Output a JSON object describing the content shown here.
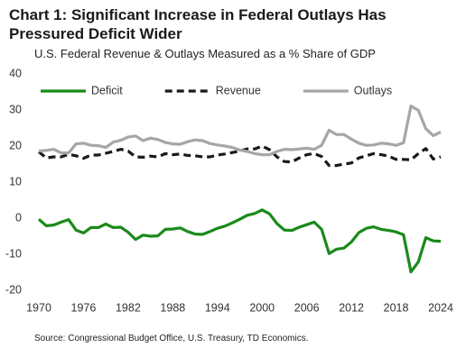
{
  "chart_data": {
    "type": "line",
    "title": "Chart 1: Significant Increase in Federal Outlays Has Pressured Deficit Wider",
    "subtitle": "U.S. Federal Revenue & Outlays Measured as a % Share of GDP",
    "source": "Source: Congressional Budget Office, U.S. Treasury, TD Economics.",
    "x": [
      1970,
      1971,
      1972,
      1973,
      1974,
      1975,
      1976,
      1977,
      1978,
      1979,
      1980,
      1981,
      1982,
      1983,
      1984,
      1985,
      1986,
      1987,
      1988,
      1989,
      1990,
      1991,
      1992,
      1993,
      1994,
      1995,
      1996,
      1997,
      1998,
      1999,
      2000,
      2001,
      2002,
      2003,
      2004,
      2005,
      2006,
      2007,
      2008,
      2009,
      2010,
      2011,
      2012,
      2013,
      2014,
      2015,
      2016,
      2017,
      2018,
      2019,
      2020,
      2021,
      2022,
      2023,
      2024
    ],
    "series": [
      {
        "name": "Deficit",
        "color": "#1a8a1a",
        "dash": false,
        "values": [
          -0.3,
          -2.1,
          -1.9,
          -1.1,
          -0.4,
          -3.3,
          -4.1,
          -2.6,
          -2.6,
          -1.6,
          -2.6,
          -2.5,
          -3.9,
          -5.9,
          -4.7,
          -5.0,
          -4.9,
          -3.1,
          -3.0,
          -2.7,
          -3.7,
          -4.4,
          -4.5,
          -3.7,
          -2.8,
          -2.2,
          -1.3,
          -0.3,
          0.8,
          1.3,
          2.3,
          1.2,
          -1.5,
          -3.3,
          -3.4,
          -2.5,
          -1.8,
          -1.1,
          -3.1,
          -9.8,
          -8.6,
          -8.3,
          -6.6,
          -4.0,
          -2.8,
          -2.4,
          -3.1,
          -3.4,
          -3.8,
          -4.6,
          -14.9,
          -12.1,
          -5.4,
          -6.3,
          -6.4
        ]
      },
      {
        "name": "Revenue",
        "color": "#1a1a1a",
        "dash": true,
        "values": [
          18.4,
          16.7,
          17.0,
          17.0,
          17.7,
          17.3,
          16.6,
          17.5,
          17.5,
          18.0,
          18.5,
          19.1,
          18.6,
          17.0,
          16.9,
          17.2,
          17.0,
          17.9,
          17.6,
          17.8,
          17.4,
          17.3,
          17.0,
          17.0,
          17.5,
          17.8,
          18.2,
          18.6,
          19.2,
          19.2,
          20.0,
          19.0,
          17.0,
          15.7,
          15.6,
          16.7,
          17.6,
          17.9,
          17.1,
          14.6,
          14.6,
          15.0,
          15.3,
          16.7,
          17.3,
          17.9,
          17.6,
          17.2,
          16.3,
          16.3,
          16.2,
          17.9,
          19.3,
          16.4,
          17.0
        ]
      },
      {
        "name": "Outlays",
        "color": "#a6a6a6",
        "dash": false,
        "values": [
          18.6,
          18.8,
          19.1,
          18.1,
          18.1,
          20.6,
          20.8,
          20.2,
          20.1,
          19.6,
          21.1,
          21.6,
          22.5,
          22.8,
          21.5,
          22.2,
          21.8,
          21.0,
          20.6,
          20.5,
          21.2,
          21.7,
          21.5,
          20.7,
          20.3,
          20.0,
          19.6,
          18.9,
          18.5,
          17.9,
          17.6,
          17.6,
          18.5,
          19.1,
          19.0,
          19.2,
          19.4,
          19.1,
          20.2,
          24.4,
          23.2,
          23.2,
          21.9,
          20.8,
          20.2,
          20.3,
          20.8,
          20.6,
          20.2,
          20.9,
          31.1,
          29.9,
          24.8,
          22.9,
          23.9
        ]
      }
    ],
    "xlim": [
      1970,
      2024
    ],
    "xticks": [
      1970,
      1976,
      1982,
      1988,
      1994,
      2000,
      2006,
      2012,
      2018,
      2024
    ],
    "ylim": [
      -20,
      40
    ],
    "yticks": [
      -20,
      -10,
      0,
      10,
      20,
      30,
      40
    ],
    "grid": false,
    "legend": "upper left"
  }
}
